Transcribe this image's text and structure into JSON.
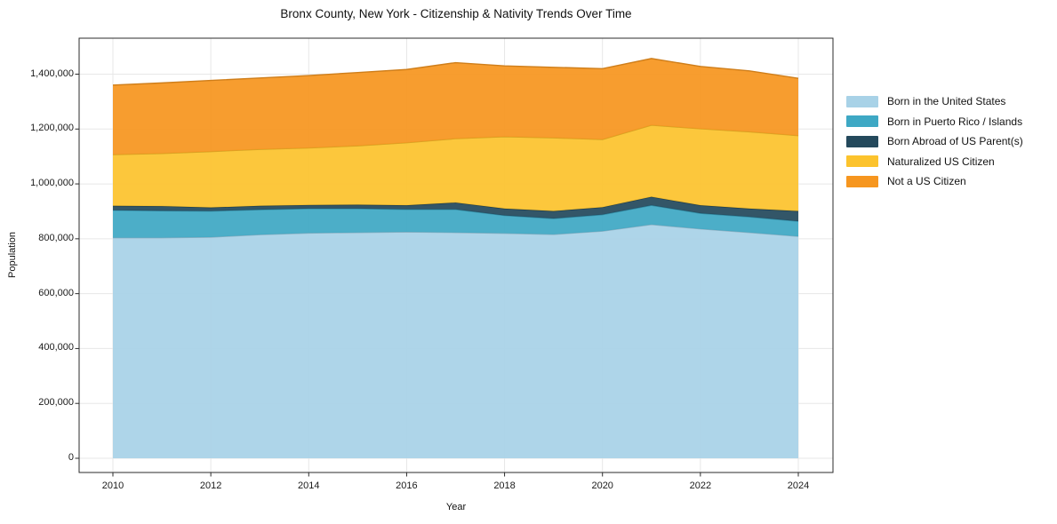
{
  "figure": {
    "title": "Bronx County, New York - Citizenship & Nativity Trends Over Time",
    "xlabel": "Year",
    "ylabel": "Population"
  },
  "chart_data": {
    "type": "area",
    "stacked": true,
    "title": "Bronx County, New York - Citizenship & Nativity Trends Over Time",
    "xlabel": "Year",
    "ylabel": "Population",
    "grid": true,
    "legend_position": "right-outside",
    "xlim": [
      2009.3,
      2024.7
    ],
    "ylim": [
      -52000,
      1531000
    ],
    "x": [
      2010,
      2011,
      2012,
      2013,
      2014,
      2015,
      2016,
      2017,
      2018,
      2019,
      2020,
      2021,
      2022,
      2023,
      2024
    ],
    "series": [
      {
        "name": "Born in the United States",
        "color": "#a8d2e7",
        "values": [
          804000,
          804000,
          806000,
          815000,
          821000,
          823000,
          825000,
          823000,
          820000,
          816000,
          828000,
          852000,
          836000,
          823000,
          809000
        ]
      },
      {
        "name": "Born in Puerto Rico / Islands",
        "color": "#3ea8c4",
        "values": [
          100000,
          98000,
          95000,
          91000,
          89000,
          87000,
          82000,
          84000,
          65000,
          58000,
          60000,
          70000,
          57000,
          57000,
          55000
        ]
      },
      {
        "name": "Born Abroad of US Parent(s)",
        "color": "#24495c",
        "values": [
          16000,
          17000,
          13000,
          14000,
          13000,
          14000,
          15000,
          25000,
          25000,
          27000,
          27000,
          31000,
          29000,
          30000,
          37000
        ]
      },
      {
        "name": "Naturalized US Citizen",
        "color": "#fcc32d",
        "values": [
          187000,
          192000,
          204000,
          206000,
          208000,
          215000,
          228000,
          233000,
          262000,
          267000,
          247000,
          261000,
          279000,
          280000,
          275000
        ]
      },
      {
        "name": "Not a US Citizen",
        "color": "#f6961f",
        "values": [
          253000,
          257000,
          259000,
          260000,
          264000,
          267000,
          267000,
          277000,
          258000,
          257000,
          258000,
          243000,
          227000,
          222000,
          209000
        ]
      }
    ],
    "xticks": {
      "values": [
        2010,
        2012,
        2014,
        2016,
        2018,
        2020,
        2022,
        2024
      ],
      "labels": [
        "2010",
        "2012",
        "2014",
        "2016",
        "2018",
        "2020",
        "2022",
        "2024"
      ]
    },
    "yticks": {
      "values": [
        0,
        200000,
        400000,
        600000,
        800000,
        1000000,
        1200000,
        1400000
      ],
      "labels": [
        "0",
        "200,000",
        "400,000",
        "600,000",
        "800,000",
        "1,000,000",
        "1,200,000",
        "1,400,000"
      ]
    }
  }
}
